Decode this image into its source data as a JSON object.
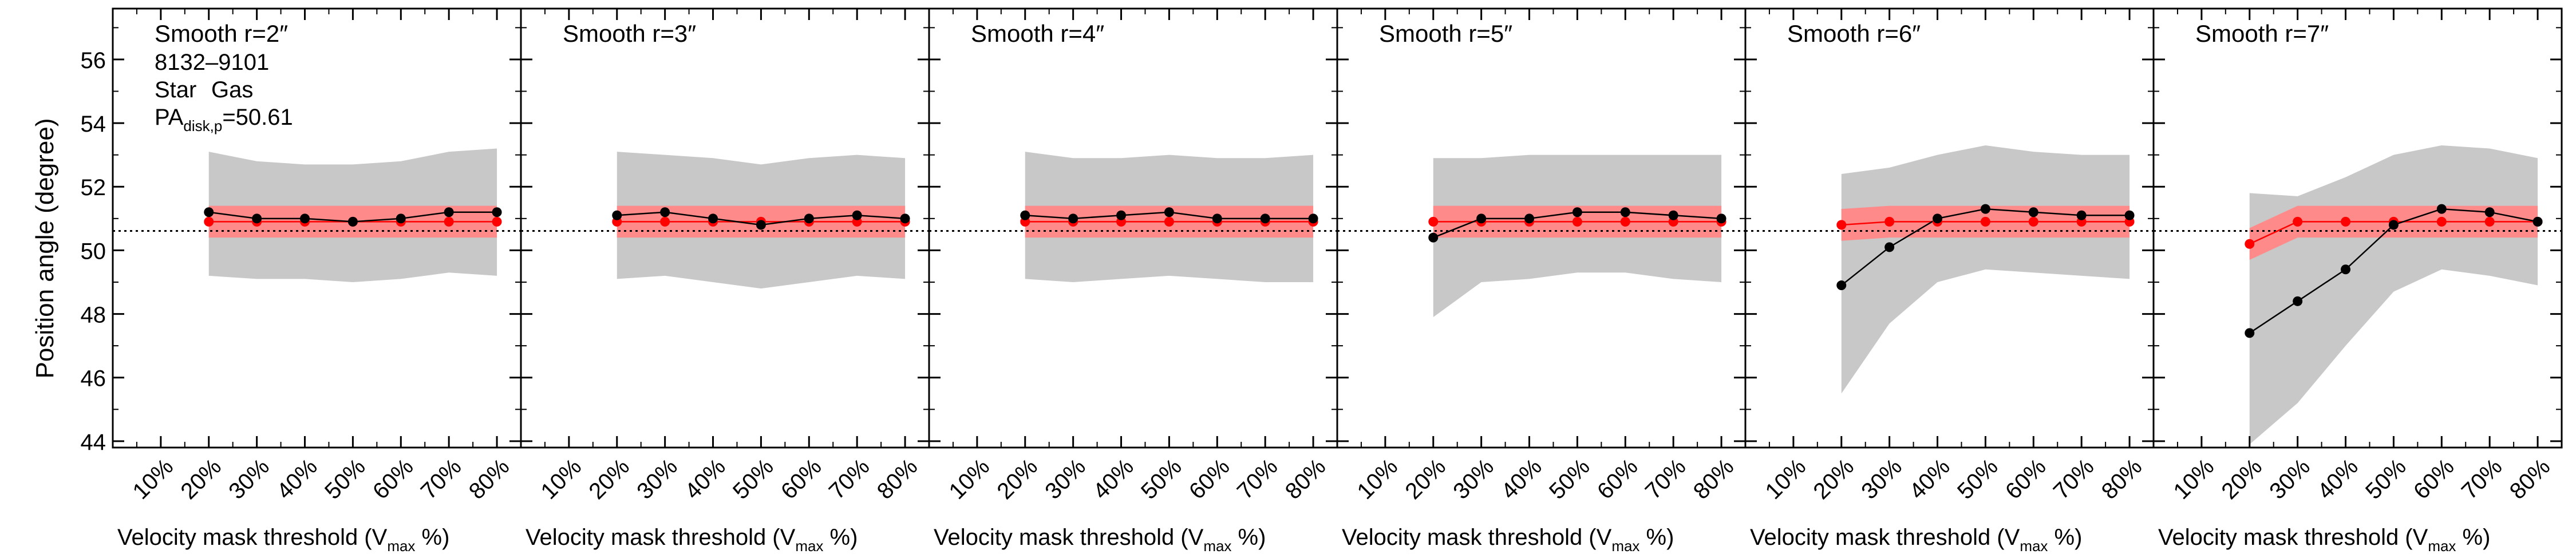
{
  "figure": {
    "ylabel": "Position angle (degree)",
    "xlabel_main": "Velocity mask threshold (V",
    "xlabel_sub": "max",
    "xlabel_end": " %)",
    "object_id": "8132–9101",
    "legend_star": "Star",
    "legend_gas": "Gas",
    "pa_main": "PA",
    "pa_sub": "disk,p",
    "pa_value": "=50.61"
  },
  "colors": {
    "star": "#000000",
    "gas": "#ff0000",
    "gas_band": "#ff8a8a",
    "star_band": "#c8c8c8",
    "reference_line": "#000000"
  },
  "chart_data": {
    "type": "line",
    "categories": [
      "10%",
      "20%",
      "30%",
      "40%",
      "50%",
      "60%",
      "70%",
      "80%"
    ],
    "x": [
      10,
      20,
      30,
      40,
      50,
      60,
      70,
      80
    ],
    "xlim": [
      0,
      85
    ],
    "ylim": [
      43.8,
      57.6
    ],
    "yticks": [
      44,
      46,
      48,
      50,
      52,
      54,
      56
    ],
    "reference_line": 50.61,
    "panels": [
      {
        "title": "Smooth r=2″",
        "star": [
          null,
          51.2,
          51.0,
          51.0,
          50.9,
          51.0,
          51.2,
          51.2
        ],
        "star_lo": [
          null,
          49.2,
          49.1,
          49.1,
          49.0,
          49.1,
          49.3,
          49.2
        ],
        "star_hi": [
          null,
          53.1,
          52.8,
          52.7,
          52.7,
          52.8,
          53.1,
          53.2
        ],
        "gas": [
          null,
          50.9,
          50.9,
          50.9,
          50.9,
          50.9,
          50.9,
          50.9
        ],
        "gas_lo": [
          null,
          50.4,
          50.4,
          50.4,
          50.4,
          50.4,
          50.4,
          50.4
        ],
        "gas_hi": [
          null,
          51.4,
          51.4,
          51.4,
          51.4,
          51.4,
          51.4,
          51.4
        ]
      },
      {
        "title": "Smooth r=3″",
        "star": [
          null,
          51.1,
          51.2,
          51.0,
          50.8,
          51.0,
          51.1,
          51.0
        ],
        "star_lo": [
          null,
          49.1,
          49.2,
          49.0,
          48.8,
          49.0,
          49.2,
          49.1
        ],
        "star_hi": [
          null,
          53.1,
          53.0,
          52.9,
          52.7,
          52.9,
          53.0,
          52.9
        ],
        "gas": [
          null,
          50.9,
          50.9,
          50.9,
          50.9,
          50.9,
          50.9,
          50.9
        ],
        "gas_lo": [
          null,
          50.4,
          50.4,
          50.4,
          50.4,
          50.4,
          50.4,
          50.4
        ],
        "gas_hi": [
          null,
          51.4,
          51.4,
          51.4,
          51.4,
          51.4,
          51.4,
          51.4
        ]
      },
      {
        "title": "Smooth r=4″",
        "star": [
          null,
          51.1,
          51.0,
          51.1,
          51.2,
          51.0,
          51.0,
          51.0
        ],
        "star_lo": [
          null,
          49.1,
          49.0,
          49.1,
          49.2,
          49.1,
          49.0,
          49.0
        ],
        "star_hi": [
          null,
          53.1,
          52.9,
          52.9,
          53.0,
          52.9,
          52.9,
          53.0
        ],
        "gas": [
          null,
          50.9,
          50.9,
          50.9,
          50.9,
          50.9,
          50.9,
          50.9
        ],
        "gas_lo": [
          null,
          50.4,
          50.4,
          50.4,
          50.4,
          50.4,
          50.4,
          50.4
        ],
        "gas_hi": [
          null,
          51.4,
          51.4,
          51.4,
          51.4,
          51.4,
          51.4,
          51.4
        ]
      },
      {
        "title": "Smooth r=5″",
        "star": [
          null,
          50.4,
          51.0,
          51.0,
          51.2,
          51.2,
          51.1,
          51.0
        ],
        "star_lo": [
          null,
          47.9,
          49.0,
          49.1,
          49.3,
          49.3,
          49.1,
          49.0
        ],
        "star_hi": [
          null,
          52.9,
          52.9,
          53.0,
          53.0,
          53.0,
          53.0,
          53.0
        ],
        "gas": [
          null,
          50.9,
          50.9,
          50.9,
          50.9,
          50.9,
          50.9,
          50.9
        ],
        "gas_lo": [
          null,
          50.4,
          50.4,
          50.4,
          50.4,
          50.4,
          50.4,
          50.4
        ],
        "gas_hi": [
          null,
          51.4,
          51.4,
          51.4,
          51.4,
          51.4,
          51.4,
          51.4
        ]
      },
      {
        "title": "Smooth r=6″",
        "star": [
          null,
          48.9,
          50.1,
          51.0,
          51.3,
          51.2,
          51.1,
          51.1
        ],
        "star_lo": [
          null,
          45.5,
          47.7,
          49.0,
          49.4,
          49.3,
          49.2,
          49.1
        ],
        "star_hi": [
          null,
          52.4,
          52.6,
          53.0,
          53.3,
          53.1,
          53.0,
          53.0
        ],
        "gas": [
          null,
          50.8,
          50.9,
          50.9,
          50.9,
          50.9,
          50.9,
          50.9
        ],
        "gas_lo": [
          null,
          50.3,
          50.4,
          50.4,
          50.4,
          50.4,
          50.4,
          50.4
        ],
        "gas_hi": [
          null,
          51.3,
          51.4,
          51.4,
          51.4,
          51.4,
          51.4,
          51.4
        ]
      },
      {
        "title": "Smooth r=7″",
        "star": [
          null,
          47.4,
          48.4,
          49.4,
          50.8,
          51.3,
          51.2,
          50.9
        ],
        "star_lo": [
          null,
          43.9,
          45.2,
          47.0,
          48.7,
          49.4,
          49.2,
          48.9
        ],
        "star_hi": [
          null,
          51.8,
          51.7,
          52.3,
          53.0,
          53.3,
          53.2,
          52.9
        ],
        "gas": [
          null,
          50.2,
          50.9,
          50.9,
          50.9,
          50.9,
          50.9,
          50.9
        ],
        "gas_lo": [
          null,
          49.7,
          50.4,
          50.4,
          50.4,
          50.4,
          50.4,
          50.4
        ],
        "gas_hi": [
          null,
          50.7,
          51.4,
          51.4,
          51.4,
          51.4,
          51.4,
          51.4
        ]
      }
    ]
  }
}
